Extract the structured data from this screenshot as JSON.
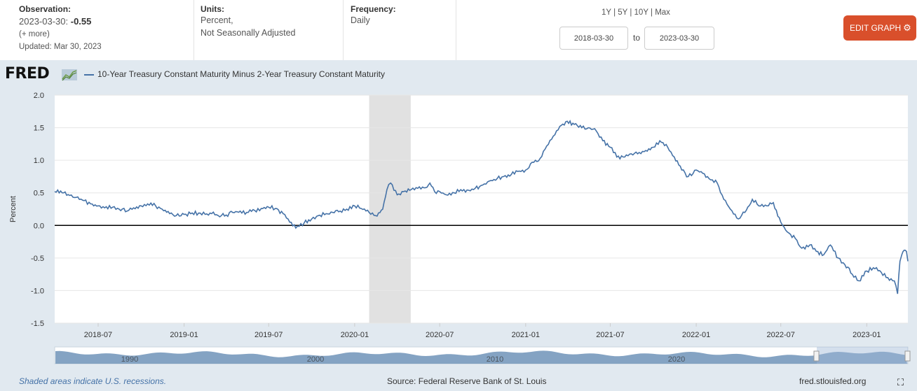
{
  "header": {
    "observation_label": "Observation:",
    "observation_date": "2023-03-30:",
    "observation_value": "-0.55",
    "more_link": "(+ more)",
    "updated": "Updated: Mar 30, 2023",
    "units_label": "Units:",
    "units_line1": "Percent,",
    "units_line2": "Not Seasonally Adjusted",
    "frequency_label": "Frequency:",
    "frequency_value": "Daily",
    "range_1y": "1Y",
    "range_5y": "5Y",
    "range_10y": "10Y",
    "range_max": "Max",
    "range_sep": "|",
    "start_date": "2018-03-30",
    "to_label": "to",
    "end_date": "2023-03-30",
    "edit_button": "EDIT GRAPH",
    "gear_glyph": "⚙"
  },
  "logo": {
    "text": "FRED",
    "icon": "chart-trend-icon"
  },
  "legend": {
    "series_name": "10-Year Treasury Constant Maturity Minus 2-Year Treasury Constant Maturity"
  },
  "footer": {
    "recession_note": "Shaded areas indicate U.S. recessions.",
    "source": "Source: Federal Reserve Bank of St. Louis",
    "site": "fred.stlouisfed.org",
    "fullscreen_icon": "expand-icon"
  },
  "colors": {
    "series": "#4572a7",
    "accent": "#d94f2b",
    "plot_bg": "#e1e9f0",
    "recession": "#e1e1e1"
  },
  "chart_data": {
    "type": "line",
    "title": "10-Year Treasury Constant Maturity Minus 2-Year Treasury Constant Maturity",
    "xlabel": "",
    "ylabel": "Percent",
    "ylim": [
      -1.5,
      2.0
    ],
    "yticks": [
      2.0,
      1.5,
      1.0,
      0.5,
      0.0,
      -0.5,
      -1.0,
      -1.5
    ],
    "ytick_labels": [
      "2.0",
      "1.5",
      "1.0",
      "0.5",
      "0.0",
      "-0.5",
      "-1.0",
      "-1.5"
    ],
    "xlim": [
      "2018-03-30",
      "2023-03-30"
    ],
    "xticks": [
      "2018-07",
      "2019-01",
      "2019-07",
      "2020-01",
      "2020-07",
      "2021-01",
      "2021-07",
      "2022-01",
      "2022-07",
      "2023-01"
    ],
    "recessions": [
      {
        "start": "2020-02-01",
        "end": "2020-04-30"
      }
    ],
    "reference_line": 0.0,
    "navigator_labels": [
      "1990",
      "2000",
      "2010",
      "2020"
    ],
    "series": [
      {
        "name": "10-Year Treasury Constant Maturity Minus 2-Year Treasury Constant Maturity",
        "x": [
          "2018-03-30",
          "2018-04-15",
          "2018-05-01",
          "2018-05-15",
          "2018-06-01",
          "2018-06-15",
          "2018-07-01",
          "2018-07-15",
          "2018-08-01",
          "2018-08-15",
          "2018-09-01",
          "2018-09-15",
          "2018-10-01",
          "2018-10-15",
          "2018-11-01",
          "2018-11-15",
          "2018-12-01",
          "2018-12-15",
          "2019-01-01",
          "2019-01-15",
          "2019-02-01",
          "2019-02-15",
          "2019-03-01",
          "2019-03-15",
          "2019-04-01",
          "2019-04-15",
          "2019-05-01",
          "2019-05-15",
          "2019-06-01",
          "2019-06-15",
          "2019-07-01",
          "2019-07-15",
          "2019-08-01",
          "2019-08-15",
          "2019-08-28",
          "2019-09-15",
          "2019-10-01",
          "2019-10-15",
          "2019-11-01",
          "2019-11-15",
          "2019-12-01",
          "2019-12-15",
          "2020-01-01",
          "2020-01-15",
          "2020-02-01",
          "2020-02-15",
          "2020-03-01",
          "2020-03-10",
          "2020-03-18",
          "2020-04-01",
          "2020-04-15",
          "2020-05-01",
          "2020-05-15",
          "2020-06-01",
          "2020-06-10",
          "2020-06-20",
          "2020-07-01",
          "2020-07-15",
          "2020-08-01",
          "2020-08-15",
          "2020-09-01",
          "2020-09-15",
          "2020-10-01",
          "2020-10-15",
          "2020-11-01",
          "2020-11-15",
          "2020-12-01",
          "2020-12-15",
          "2021-01-01",
          "2021-01-15",
          "2021-02-01",
          "2021-02-15",
          "2021-03-01",
          "2021-03-15",
          "2021-03-31",
          "2021-04-15",
          "2021-05-01",
          "2021-05-15",
          "2021-06-01",
          "2021-06-15",
          "2021-07-01",
          "2021-07-15",
          "2021-08-01",
          "2021-08-15",
          "2021-09-01",
          "2021-09-15",
          "2021-10-01",
          "2021-10-15",
          "2021-11-01",
          "2021-11-15",
          "2021-12-01",
          "2021-12-15",
          "2022-01-01",
          "2022-01-15",
          "2022-02-01",
          "2022-02-15",
          "2022-03-01",
          "2022-03-15",
          "2022-04-01",
          "2022-04-15",
          "2022-05-01",
          "2022-05-15",
          "2022-06-01",
          "2022-06-15",
          "2022-07-01",
          "2022-07-15",
          "2022-08-01",
          "2022-08-15",
          "2022-09-01",
          "2022-09-15",
          "2022-10-01",
          "2022-10-15",
          "2022-11-01",
          "2022-11-15",
          "2022-12-01",
          "2022-12-15",
          "2023-01-01",
          "2023-01-15",
          "2023-02-01",
          "2023-02-15",
          "2023-03-01",
          "2023-03-08",
          "2023-03-13",
          "2023-03-17",
          "2023-03-22",
          "2023-03-27",
          "2023-03-30"
        ],
        "values": [
          0.52,
          0.5,
          0.46,
          0.43,
          0.38,
          0.33,
          0.3,
          0.27,
          0.28,
          0.25,
          0.22,
          0.27,
          0.3,
          0.33,
          0.3,
          0.25,
          0.18,
          0.15,
          0.17,
          0.18,
          0.19,
          0.17,
          0.18,
          0.15,
          0.16,
          0.2,
          0.22,
          0.2,
          0.23,
          0.26,
          0.28,
          0.26,
          0.18,
          0.05,
          -0.04,
          0.04,
          0.1,
          0.15,
          0.18,
          0.2,
          0.22,
          0.25,
          0.3,
          0.26,
          0.2,
          0.15,
          0.25,
          0.55,
          0.65,
          0.47,
          0.52,
          0.55,
          0.57,
          0.58,
          0.65,
          0.52,
          0.52,
          0.47,
          0.5,
          0.55,
          0.54,
          0.57,
          0.62,
          0.68,
          0.72,
          0.75,
          0.78,
          0.83,
          0.85,
          0.97,
          1.03,
          1.22,
          1.37,
          1.52,
          1.6,
          1.55,
          1.5,
          1.5,
          1.45,
          1.3,
          1.2,
          1.05,
          1.05,
          1.1,
          1.12,
          1.15,
          1.2,
          1.3,
          1.2,
          1.05,
          0.85,
          0.75,
          0.85,
          0.8,
          0.7,
          0.65,
          0.4,
          0.25,
          0.1,
          0.2,
          0.4,
          0.3,
          0.3,
          0.35,
          0.05,
          -0.1,
          -0.2,
          -0.35,
          -0.3,
          -0.4,
          -0.45,
          -0.3,
          -0.5,
          -0.6,
          -0.75,
          -0.85,
          -0.7,
          -0.65,
          -0.72,
          -0.8,
          -0.85,
          -1.05,
          -0.55,
          -0.45,
          -0.38,
          -0.4,
          -0.55
        ]
      }
    ]
  }
}
